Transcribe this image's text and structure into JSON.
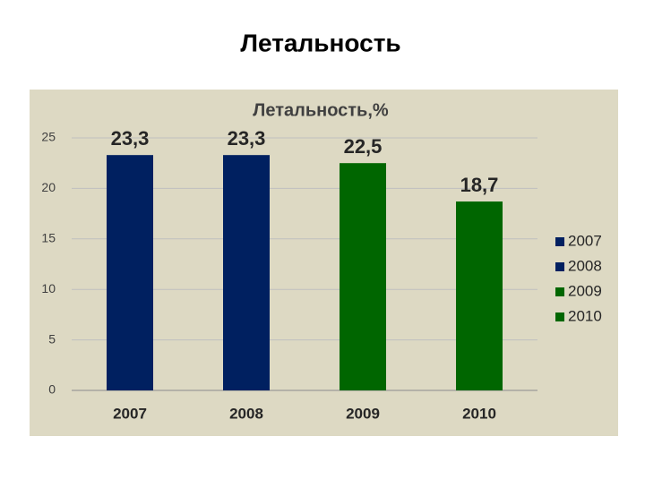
{
  "slide_title": "Летальность",
  "chart_data": {
    "type": "bar",
    "title": "Летальность,%",
    "categories": [
      "2007",
      "2008",
      "2009",
      "2010"
    ],
    "values": [
      23.3,
      23.3,
      22.5,
      18.7
    ],
    "value_labels": [
      "23,3",
      "23,3",
      "22,5",
      "18,7"
    ],
    "colors": [
      "#002060",
      "#002060",
      "#006600",
      "#006600"
    ],
    "ylim": [
      0,
      25
    ],
    "yticks": [
      0,
      5,
      10,
      15,
      20,
      25
    ],
    "grid": true,
    "legend": "right"
  }
}
